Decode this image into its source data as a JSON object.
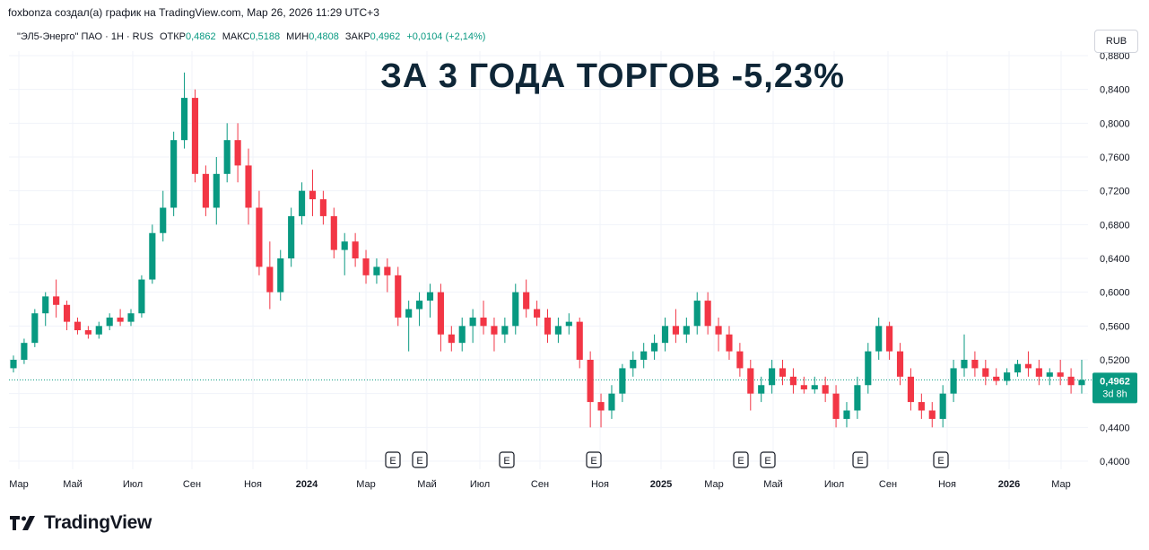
{
  "header": {
    "created_by": "foxbonza создал(а) график на TradingView.com, Мар 26, 2026 11:29 UTC+3"
  },
  "legend": {
    "symbol": "\"ЭЛ5-Энерго\" ПАО · 1Н · RUS",
    "open_label": "ОТКР",
    "open_value": "0,4862",
    "high_label": "МАКС",
    "high_value": "0,5188",
    "low_label": "МИН",
    "low_value": "0,4808",
    "close_label": "ЗАКР",
    "close_value": "0,4962",
    "change": "+0,0104 (+2,14%)"
  },
  "currency_button": "RUB",
  "headline": "ЗА 3 ГОДА ТОРГОВ -5,23%",
  "price_badge": {
    "value": "0,4962",
    "countdown": "3d 8h"
  },
  "brand": "TradingView",
  "colors": {
    "up": "#089981",
    "down": "#f23645",
    "grid": "#f0f3fa",
    "headline": "#0e2637"
  },
  "chart_data": {
    "type": "candlestick",
    "title": "ЗА 3 ГОДА ТОРГОВ -5,23%",
    "y_ticks": [
      "0,4000",
      "0,4400",
      "0,4800",
      "0,5200",
      "0,5600",
      "0,6000",
      "0,6400",
      "0,6800",
      "0,7200",
      "0,7600",
      "0,8000",
      "0,8400",
      "0,8800"
    ],
    "y_range": [
      0.39,
      0.885
    ],
    "x_labels": [
      "Мар",
      "Май",
      "Июл",
      "Сен",
      "Ноя",
      "2024",
      "Мар",
      "Май",
      "Июл",
      "Сен",
      "Ноя",
      "2025",
      "Мар",
      "Май",
      "Июл",
      "Сен",
      "Ноя",
      "2026",
      "Мар"
    ],
    "x_label_bold": [
      "2024",
      "2025",
      "2026"
    ],
    "last_price": 0.4962,
    "earnings_markers": [
      "E",
      "E",
      "E",
      "E",
      "E",
      "E",
      "E",
      "E"
    ],
    "candles": [
      [
        0.51,
        0.525,
        0.505,
        0.52
      ],
      [
        0.52,
        0.545,
        0.515,
        0.54
      ],
      [
        0.54,
        0.58,
        0.535,
        0.575
      ],
      [
        0.575,
        0.6,
        0.56,
        0.595
      ],
      [
        0.595,
        0.615,
        0.57,
        0.585
      ],
      [
        0.585,
        0.59,
        0.555,
        0.565
      ],
      [
        0.565,
        0.57,
        0.55,
        0.555
      ],
      [
        0.555,
        0.56,
        0.545,
        0.55
      ],
      [
        0.55,
        0.565,
        0.545,
        0.56
      ],
      [
        0.56,
        0.575,
        0.555,
        0.57
      ],
      [
        0.57,
        0.58,
        0.56,
        0.565
      ],
      [
        0.565,
        0.58,
        0.56,
        0.575
      ],
      [
        0.575,
        0.62,
        0.57,
        0.615
      ],
      [
        0.615,
        0.68,
        0.61,
        0.67
      ],
      [
        0.67,
        0.72,
        0.66,
        0.7
      ],
      [
        0.7,
        0.79,
        0.69,
        0.78
      ],
      [
        0.78,
        0.86,
        0.77,
        0.83
      ],
      [
        0.83,
        0.84,
        0.73,
        0.74
      ],
      [
        0.74,
        0.75,
        0.69,
        0.7
      ],
      [
        0.7,
        0.76,
        0.68,
        0.74
      ],
      [
        0.74,
        0.8,
        0.73,
        0.78
      ],
      [
        0.78,
        0.8,
        0.73,
        0.75
      ],
      [
        0.75,
        0.77,
        0.68,
        0.7
      ],
      [
        0.7,
        0.72,
        0.62,
        0.63
      ],
      [
        0.63,
        0.66,
        0.58,
        0.6
      ],
      [
        0.6,
        0.65,
        0.59,
        0.64
      ],
      [
        0.64,
        0.7,
        0.63,
        0.69
      ],
      [
        0.69,
        0.73,
        0.68,
        0.72
      ],
      [
        0.72,
        0.745,
        0.69,
        0.71
      ],
      [
        0.71,
        0.72,
        0.68,
        0.69
      ],
      [
        0.69,
        0.7,
        0.64,
        0.65
      ],
      [
        0.65,
        0.67,
        0.62,
        0.66
      ],
      [
        0.66,
        0.67,
        0.63,
        0.64
      ],
      [
        0.64,
        0.65,
        0.61,
        0.62
      ],
      [
        0.62,
        0.64,
        0.61,
        0.63
      ],
      [
        0.63,
        0.64,
        0.6,
        0.62
      ],
      [
        0.62,
        0.63,
        0.56,
        0.57
      ],
      [
        0.57,
        0.59,
        0.53,
        0.58
      ],
      [
        0.58,
        0.6,
        0.56,
        0.59
      ],
      [
        0.59,
        0.61,
        0.57,
        0.6
      ],
      [
        0.6,
        0.61,
        0.53,
        0.55
      ],
      [
        0.55,
        0.56,
        0.53,
        0.54
      ],
      [
        0.54,
        0.57,
        0.53,
        0.56
      ],
      [
        0.56,
        0.58,
        0.54,
        0.57
      ],
      [
        0.57,
        0.59,
        0.55,
        0.56
      ],
      [
        0.56,
        0.57,
        0.53,
        0.55
      ],
      [
        0.55,
        0.57,
        0.54,
        0.56
      ],
      [
        0.56,
        0.61,
        0.55,
        0.6
      ],
      [
        0.6,
        0.615,
        0.57,
        0.58
      ],
      [
        0.58,
        0.59,
        0.56,
        0.57
      ],
      [
        0.57,
        0.58,
        0.54,
        0.55
      ],
      [
        0.55,
        0.57,
        0.54,
        0.56
      ],
      [
        0.56,
        0.575,
        0.55,
        0.565
      ],
      [
        0.565,
        0.57,
        0.51,
        0.52
      ],
      [
        0.52,
        0.53,
        0.44,
        0.47
      ],
      [
        0.47,
        0.48,
        0.44,
        0.46
      ],
      [
        0.46,
        0.49,
        0.45,
        0.48
      ],
      [
        0.48,
        0.515,
        0.47,
        0.51
      ],
      [
        0.51,
        0.53,
        0.5,
        0.52
      ],
      [
        0.52,
        0.54,
        0.51,
        0.53
      ],
      [
        0.53,
        0.55,
        0.52,
        0.54
      ],
      [
        0.54,
        0.57,
        0.53,
        0.56
      ],
      [
        0.56,
        0.58,
        0.54,
        0.55
      ],
      [
        0.55,
        0.57,
        0.54,
        0.56
      ],
      [
        0.56,
        0.6,
        0.55,
        0.59
      ],
      [
        0.59,
        0.6,
        0.55,
        0.56
      ],
      [
        0.56,
        0.57,
        0.53,
        0.55
      ],
      [
        0.55,
        0.56,
        0.52,
        0.53
      ],
      [
        0.53,
        0.54,
        0.5,
        0.51
      ],
      [
        0.51,
        0.52,
        0.46,
        0.48
      ],
      [
        0.48,
        0.5,
        0.47,
        0.49
      ],
      [
        0.49,
        0.52,
        0.48,
        0.51
      ],
      [
        0.51,
        0.52,
        0.49,
        0.5
      ],
      [
        0.5,
        0.51,
        0.48,
        0.49
      ],
      [
        0.49,
        0.5,
        0.48,
        0.485
      ],
      [
        0.485,
        0.5,
        0.48,
        0.49
      ],
      [
        0.49,
        0.5,
        0.47,
        0.48
      ],
      [
        0.48,
        0.49,
        0.44,
        0.45
      ],
      [
        0.45,
        0.47,
        0.44,
        0.46
      ],
      [
        0.46,
        0.5,
        0.45,
        0.49
      ],
      [
        0.49,
        0.54,
        0.48,
        0.53
      ],
      [
        0.53,
        0.57,
        0.52,
        0.56
      ],
      [
        0.56,
        0.565,
        0.52,
        0.53
      ],
      [
        0.53,
        0.54,
        0.49,
        0.5
      ],
      [
        0.5,
        0.51,
        0.46,
        0.47
      ],
      [
        0.47,
        0.48,
        0.45,
        0.46
      ],
      [
        0.46,
        0.47,
        0.44,
        0.45
      ],
      [
        0.45,
        0.49,
        0.44,
        0.48
      ],
      [
        0.48,
        0.52,
        0.47,
        0.51
      ],
      [
        0.51,
        0.55,
        0.5,
        0.52
      ],
      [
        0.52,
        0.53,
        0.5,
        0.51
      ],
      [
        0.51,
        0.52,
        0.49,
        0.5
      ],
      [
        0.5,
        0.51,
        0.49,
        0.495
      ],
      [
        0.495,
        0.51,
        0.49,
        0.505
      ],
      [
        0.505,
        0.52,
        0.5,
        0.515
      ],
      [
        0.515,
        0.53,
        0.5,
        0.51
      ],
      [
        0.51,
        0.52,
        0.49,
        0.5
      ],
      [
        0.5,
        0.51,
        0.49,
        0.505
      ],
      [
        0.505,
        0.52,
        0.49,
        0.5
      ],
      [
        0.5,
        0.51,
        0.48,
        0.49
      ],
      [
        0.49,
        0.52,
        0.48,
        0.4962
      ]
    ]
  }
}
